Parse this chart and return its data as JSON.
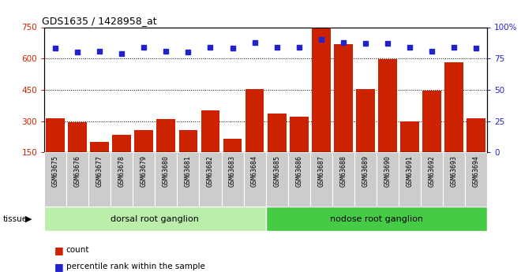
{
  "title": "GDS1635 / 1428958_at",
  "categories": [
    "GSM63675",
    "GSM63676",
    "GSM63677",
    "GSM63678",
    "GSM63679",
    "GSM63680",
    "GSM63681",
    "GSM63682",
    "GSM63683",
    "GSM63684",
    "GSM63685",
    "GSM63686",
    "GSM63687",
    "GSM63688",
    "GSM63689",
    "GSM63690",
    "GSM63691",
    "GSM63692",
    "GSM63693",
    "GSM63694"
  ],
  "bar_values": [
    315,
    295,
    200,
    235,
    255,
    310,
    255,
    350,
    215,
    455,
    335,
    320,
    745,
    670,
    455,
    595,
    300,
    445,
    580,
    315
  ],
  "dot_values": [
    83,
    80,
    81,
    79,
    84,
    81,
    80,
    84,
    83,
    88,
    84,
    84,
    90,
    88,
    87,
    87,
    84,
    81,
    84,
    83
  ],
  "bar_color": "#cc2200",
  "dot_color": "#2222cc",
  "ylim_left": [
    150,
    750
  ],
  "ylim_right": [
    0,
    100
  ],
  "yticks_left": [
    150,
    300,
    450,
    600,
    750
  ],
  "yticks_right": [
    0,
    25,
    50,
    75,
    100
  ],
  "grid_values": [
    300,
    450,
    600
  ],
  "tissue_groups": [
    {
      "label": "dorsal root ganglion",
      "start": 0,
      "end": 9,
      "color": "#bbeeaa"
    },
    {
      "label": "nodose root ganglion",
      "start": 10,
      "end": 19,
      "color": "#44cc44"
    }
  ],
  "legend_items": [
    {
      "label": "count",
      "color": "#cc2200"
    },
    {
      "label": "percentile rank within the sample",
      "color": "#2222cc"
    }
  ],
  "tissue_label": "tissue",
  "background_color": "#ffffff",
  "plot_bg_color": "#ffffff",
  "tick_bg_color": "#cccccc"
}
